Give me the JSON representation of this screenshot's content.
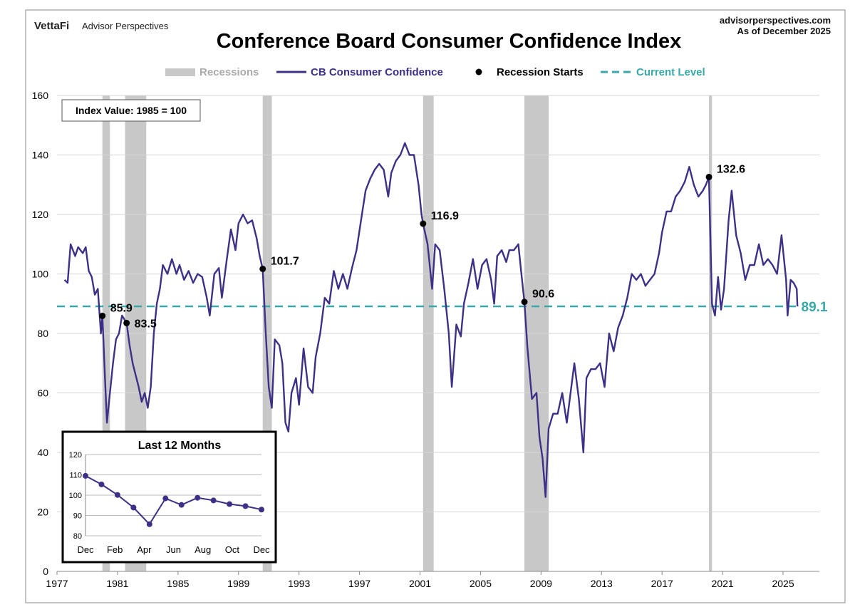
{
  "header": {
    "brand": "VettaFi",
    "brand_sub": "Advisor Perspectives",
    "title": "Conference Board Consumer Confidence Index",
    "source": "advisorperspectives.com",
    "asof": "As of December 2025"
  },
  "legend": {
    "recessions": "Recessions",
    "series": "CB Consumer Confidence",
    "starts": "Recession Starts",
    "current": "Current Level"
  },
  "colors": {
    "series": "#3d3087",
    "recession": "#c8c8c8",
    "current": "#3aa8a8",
    "marker": "#000000"
  },
  "chart_data": {
    "type": "line",
    "note": "Index Value: 1985 = 100",
    "xlim": [
      1977,
      2027.4
    ],
    "ylim": [
      0,
      160
    ],
    "x_ticks": [
      "1977",
      "1981",
      "1985",
      "1989",
      "1993",
      "1997",
      "2001",
      "2005",
      "2009",
      "2013",
      "2017",
      "2021",
      "2025"
    ],
    "y_ticks": [
      "0",
      "20",
      "40",
      "60",
      "80",
      "100",
      "120",
      "140",
      "160"
    ],
    "grid": true,
    "legend_position": "top",
    "recessions": [
      [
        1980.0,
        1980.5
      ],
      [
        1981.5,
        1982.9
      ],
      [
        1990.6,
        1991.2
      ],
      [
        2001.2,
        2001.9
      ],
      [
        2007.9,
        2009.5
      ],
      [
        2020.1,
        2020.3
      ]
    ],
    "recession_starts": [
      {
        "x": 1980.0,
        "y": 85.9,
        "label": "85.9"
      },
      {
        "x": 1981.6,
        "y": 83.5,
        "label": "83.5"
      },
      {
        "x": 1990.6,
        "y": 101.7,
        "label": "101.7"
      },
      {
        "x": 2001.2,
        "y": 116.9,
        "label": "116.9"
      },
      {
        "x": 2007.9,
        "y": 90.6,
        "label": "90.6"
      },
      {
        "x": 2020.1,
        "y": 132.6,
        "label": "132.6"
      }
    ],
    "current_level": {
      "value": 89.1,
      "label": "89.1"
    },
    "series": [
      {
        "name": "CB Consumer Confidence",
        "points": [
          [
            1977.5,
            98
          ],
          [
            1977.7,
            97
          ],
          [
            1977.9,
            110
          ],
          [
            1978.2,
            106
          ],
          [
            1978.4,
            109
          ],
          [
            1978.7,
            107
          ],
          [
            1978.9,
            109
          ],
          [
            1979.1,
            101
          ],
          [
            1979.3,
            99
          ],
          [
            1979.5,
            93
          ],
          [
            1979.7,
            95
          ],
          [
            1979.9,
            80
          ],
          [
            1980.0,
            85.9
          ],
          [
            1980.2,
            62
          ],
          [
            1980.3,
            50
          ],
          [
            1980.5,
            60
          ],
          [
            1980.7,
            70
          ],
          [
            1980.9,
            78
          ],
          [
            1981.1,
            80
          ],
          [
            1981.3,
            86
          ],
          [
            1981.6,
            83.5
          ],
          [
            1981.8,
            76
          ],
          [
            1982.0,
            70
          ],
          [
            1982.2,
            66
          ],
          [
            1982.4,
            62
          ],
          [
            1982.6,
            57
          ],
          [
            1982.8,
            60
          ],
          [
            1983.0,
            55
          ],
          [
            1983.2,
            62
          ],
          [
            1983.4,
            80
          ],
          [
            1983.6,
            90
          ],
          [
            1983.8,
            95
          ],
          [
            1984.0,
            103
          ],
          [
            1984.3,
            100
          ],
          [
            1984.6,
            105
          ],
          [
            1984.9,
            100
          ],
          [
            1985.1,
            103
          ],
          [
            1985.4,
            98
          ],
          [
            1985.7,
            101
          ],
          [
            1986.0,
            97
          ],
          [
            1986.3,
            100
          ],
          [
            1986.6,
            99
          ],
          [
            1986.9,
            92
          ],
          [
            1987.1,
            86
          ],
          [
            1987.4,
            100
          ],
          [
            1987.7,
            102
          ],
          [
            1987.9,
            92
          ],
          [
            1988.2,
            104
          ],
          [
            1988.5,
            115
          ],
          [
            1988.8,
            108
          ],
          [
            1989.0,
            117
          ],
          [
            1989.3,
            120
          ],
          [
            1989.6,
            117
          ],
          [
            1989.9,
            118
          ],
          [
            1990.2,
            112
          ],
          [
            1990.4,
            106
          ],
          [
            1990.6,
            101.7
          ],
          [
            1990.8,
            80
          ],
          [
            1991.0,
            62
          ],
          [
            1991.2,
            55
          ],
          [
            1991.4,
            78
          ],
          [
            1991.7,
            76
          ],
          [
            1991.9,
            70
          ],
          [
            1992.1,
            50
          ],
          [
            1992.3,
            47
          ],
          [
            1992.5,
            60
          ],
          [
            1992.8,
            65
          ],
          [
            1993.0,
            56
          ],
          [
            1993.3,
            75
          ],
          [
            1993.6,
            62
          ],
          [
            1993.9,
            60
          ],
          [
            1994.1,
            72
          ],
          [
            1994.4,
            80
          ],
          [
            1994.7,
            92
          ],
          [
            1995.0,
            90
          ],
          [
            1995.3,
            101
          ],
          [
            1995.6,
            95
          ],
          [
            1995.9,
            100
          ],
          [
            1996.2,
            95
          ],
          [
            1996.5,
            102
          ],
          [
            1996.8,
            108
          ],
          [
            1997.1,
            118
          ],
          [
            1997.4,
            128
          ],
          [
            1997.7,
            132
          ],
          [
            1998.0,
            135
          ],
          [
            1998.3,
            137
          ],
          [
            1998.6,
            135
          ],
          [
            1998.9,
            126
          ],
          [
            1999.1,
            134
          ],
          [
            1999.4,
            138
          ],
          [
            1999.7,
            140
          ],
          [
            2000.0,
            144
          ],
          [
            2000.3,
            140
          ],
          [
            2000.6,
            140
          ],
          [
            2000.9,
            130
          ],
          [
            2001.1,
            120
          ],
          [
            2001.2,
            116.9
          ],
          [
            2001.5,
            110
          ],
          [
            2001.8,
            95
          ],
          [
            2002.0,
            110
          ],
          [
            2002.3,
            108
          ],
          [
            2002.6,
            95
          ],
          [
            2002.9,
            80
          ],
          [
            2003.1,
            62
          ],
          [
            2003.4,
            83
          ],
          [
            2003.7,
            79
          ],
          [
            2003.9,
            90
          ],
          [
            2004.2,
            97
          ],
          [
            2004.5,
            105
          ],
          [
            2004.8,
            95
          ],
          [
            2005.1,
            103
          ],
          [
            2005.4,
            105
          ],
          [
            2005.7,
            98
          ],
          [
            2005.9,
            90
          ],
          [
            2006.1,
            106
          ],
          [
            2006.4,
            108
          ],
          [
            2006.7,
            104
          ],
          [
            2006.9,
            108
          ],
          [
            2007.2,
            108
          ],
          [
            2007.5,
            110
          ],
          [
            2007.7,
            100
          ],
          [
            2007.9,
            90.6
          ],
          [
            2008.1,
            75
          ],
          [
            2008.4,
            58
          ],
          [
            2008.7,
            60
          ],
          [
            2008.9,
            45
          ],
          [
            2009.1,
            38
          ],
          [
            2009.3,
            25
          ],
          [
            2009.5,
            48
          ],
          [
            2009.8,
            53
          ],
          [
            2010.1,
            53
          ],
          [
            2010.4,
            60
          ],
          [
            2010.7,
            50
          ],
          [
            2010.9,
            58
          ],
          [
            2011.2,
            70
          ],
          [
            2011.5,
            58
          ],
          [
            2011.8,
            40
          ],
          [
            2012.0,
            65
          ],
          [
            2012.3,
            68
          ],
          [
            2012.6,
            68
          ],
          [
            2012.9,
            70
          ],
          [
            2013.2,
            62
          ],
          [
            2013.5,
            80
          ],
          [
            2013.8,
            74
          ],
          [
            2014.1,
            82
          ],
          [
            2014.4,
            86
          ],
          [
            2014.7,
            92
          ],
          [
            2015.0,
            100
          ],
          [
            2015.3,
            98
          ],
          [
            2015.6,
            100
          ],
          [
            2015.9,
            96
          ],
          [
            2016.2,
            98
          ],
          [
            2016.5,
            100
          ],
          [
            2016.8,
            107
          ],
          [
            2017.0,
            114
          ],
          [
            2017.3,
            121
          ],
          [
            2017.6,
            121
          ],
          [
            2017.9,
            126
          ],
          [
            2018.2,
            128
          ],
          [
            2018.5,
            131
          ],
          [
            2018.8,
            136
          ],
          [
            2019.1,
            130
          ],
          [
            2019.4,
            126
          ],
          [
            2019.7,
            128
          ],
          [
            2019.9,
            130
          ],
          [
            2020.1,
            132.6
          ],
          [
            2020.3,
            90
          ],
          [
            2020.5,
            86
          ],
          [
            2020.7,
            99
          ],
          [
            2020.9,
            88
          ],
          [
            2021.1,
            95
          ],
          [
            2021.4,
            118
          ],
          [
            2021.6,
            128
          ],
          [
            2021.9,
            113
          ],
          [
            2022.2,
            107
          ],
          [
            2022.5,
            98
          ],
          [
            2022.8,
            103
          ],
          [
            2023.1,
            103
          ],
          [
            2023.4,
            110
          ],
          [
            2023.7,
            103
          ],
          [
            2024.0,
            105
          ],
          [
            2024.3,
            103
          ],
          [
            2024.6,
            100
          ],
          [
            2024.9,
            113
          ],
          [
            2025.2,
            98
          ],
          [
            2025.3,
            86
          ],
          [
            2025.5,
            98
          ],
          [
            2025.7,
            97
          ],
          [
            2025.9,
            95
          ],
          [
            2025.95,
            89.1
          ]
        ]
      }
    ],
    "inset": {
      "title": "Last 12 Months",
      "x_ticks": [
        "Dec",
        "Feb",
        "Apr",
        "Jun",
        "Aug",
        "Oct",
        "Dec"
      ],
      "y_ticks": [
        "80",
        "90",
        "100",
        "110",
        "120"
      ],
      "ylim": [
        80,
        120
      ],
      "values": [
        109.5,
        105.3,
        100.1,
        93.9,
        85.7,
        98.4,
        95.2,
        98.7,
        97.4,
        95.6,
        94.6,
        92.9
      ]
    }
  }
}
